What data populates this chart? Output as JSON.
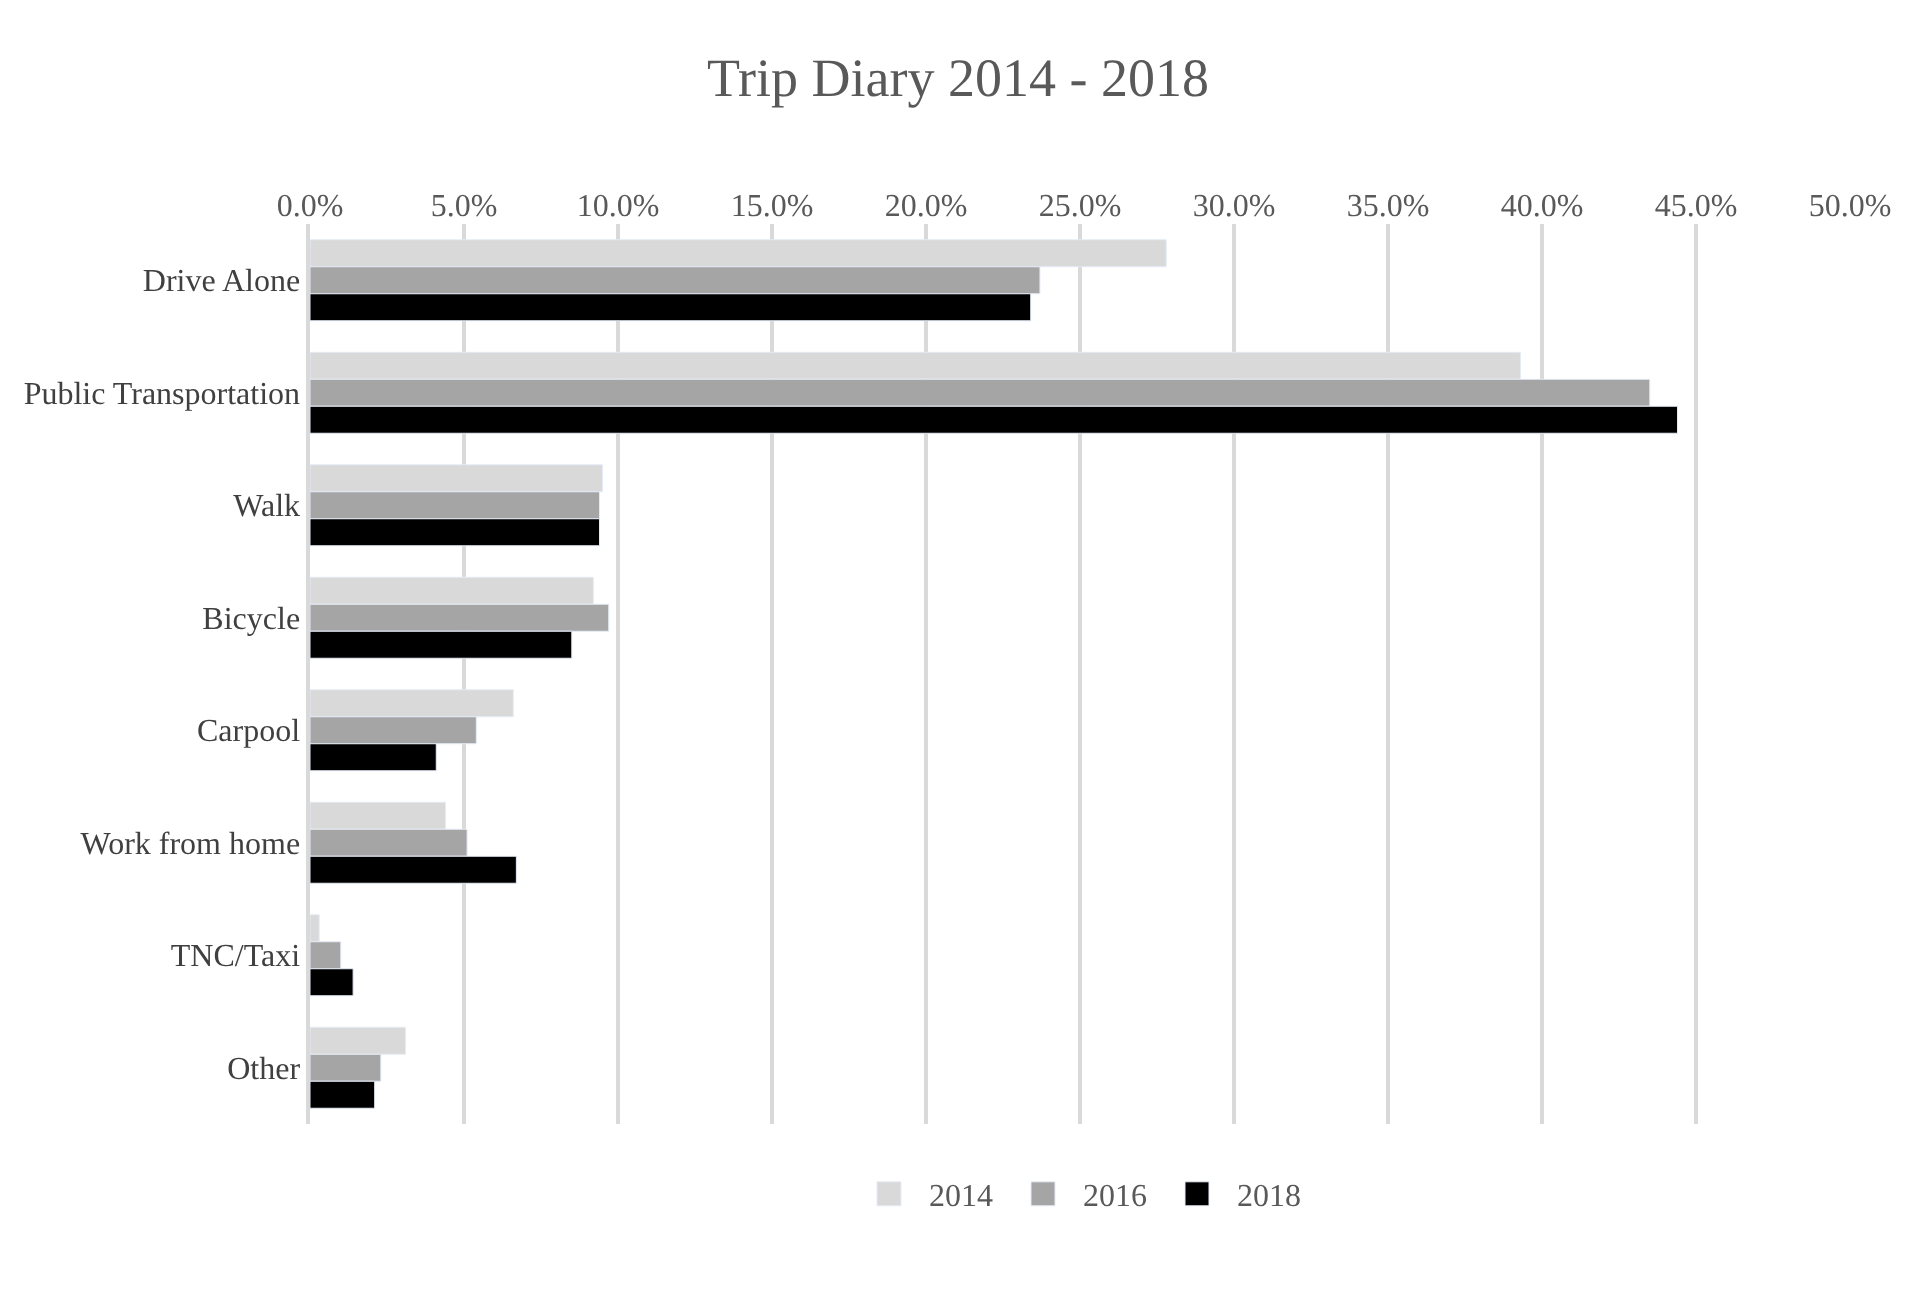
{
  "chart_data": {
    "type": "bar",
    "orientation": "horizontal",
    "title": "Trip Diary 2014 - 2018",
    "categories": [
      "Drive Alone",
      "Public Transportation",
      "Walk",
      "Bicycle",
      "Carpool",
      "Work from home",
      "TNC/Taxi",
      "Other"
    ],
    "series": [
      {
        "name": "2014",
        "color": "#d9d9d9",
        "values": [
          27.8,
          39.3,
          9.5,
          9.2,
          6.6,
          4.4,
          0.3,
          3.1
        ]
      },
      {
        "name": "2016",
        "color": "#a5a5a5",
        "values": [
          23.7,
          43.5,
          9.4,
          9.7,
          5.4,
          5.1,
          1.0,
          2.3
        ]
      },
      {
        "name": "2018",
        "color": "#000000",
        "values": [
          23.4,
          44.4,
          9.4,
          8.5,
          4.1,
          6.7,
          1.4,
          2.1
        ]
      }
    ],
    "xlim": [
      0,
      50
    ],
    "xticks": [
      {
        "value": 0,
        "label": "0.0%"
      },
      {
        "value": 5,
        "label": "5.0%"
      },
      {
        "value": 10,
        "label": "10.0%"
      },
      {
        "value": 15,
        "label": "15.0%"
      },
      {
        "value": 20,
        "label": "20.0%"
      },
      {
        "value": 25,
        "label": "25.0%"
      },
      {
        "value": 30,
        "label": "30.0%"
      },
      {
        "value": 35,
        "label": "35.0%"
      },
      {
        "value": 40,
        "label": "40.0%"
      },
      {
        "value": 45,
        "label": "45.0%"
      },
      {
        "value": 50,
        "label": "50.0%"
      }
    ],
    "grid": "x",
    "legend": "bottom"
  }
}
